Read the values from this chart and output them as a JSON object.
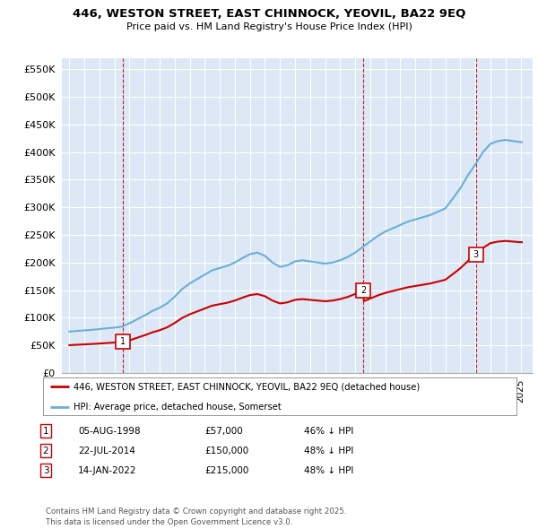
{
  "title": "446, WESTON STREET, EAST CHINNOCK, YEOVIL, BA22 9EQ",
  "subtitle": "Price paid vs. HM Land Registry's House Price Index (HPI)",
  "sales": [
    {
      "date_float": 1998.583,
      "price": 57000,
      "label": "1"
    },
    {
      "date_float": 2014.542,
      "price": 150000,
      "label": "2"
    },
    {
      "date_float": 2022.036,
      "price": 215000,
      "label": "3"
    }
  ],
  "sale_details": [
    {
      "num": "1",
      "date": "05-AUG-1998",
      "price": "£57,000",
      "change": "46% ↓ HPI"
    },
    {
      "num": "2",
      "date": "22-JUL-2014",
      "price": "£150,000",
      "change": "48% ↓ HPI"
    },
    {
      "num": "3",
      "date": "14-JAN-2022",
      "price": "£215,000",
      "change": "48% ↓ HPI"
    }
  ],
  "legend_line1": "446, WESTON STREET, EAST CHINNOCK, YEOVIL, BA22 9EQ (detached house)",
  "legend_line2": "HPI: Average price, detached house, Somerset",
  "footer": "Contains HM Land Registry data © Crown copyright and database right 2025.\nThis data is licensed under the Open Government Licence v3.0.",
  "red_color": "#cc0000",
  "blue_color": "#6baed6",
  "background_color": "#dce8f5",
  "ylim_max": 570000,
  "ylabel_ticks": [
    0,
    50000,
    100000,
    150000,
    200000,
    250000,
    300000,
    350000,
    400000,
    450000,
    500000,
    550000
  ],
  "ylabel_labels": [
    "£0",
    "£50K",
    "£100K",
    "£150K",
    "£200K",
    "£250K",
    "£300K",
    "£350K",
    "£400K",
    "£450K",
    "£500K",
    "£550K"
  ],
  "hpi_points": [
    [
      1995.0,
      75000
    ],
    [
      1995.5,
      76000
    ],
    [
      1996.0,
      77000
    ],
    [
      1996.5,
      78000
    ],
    [
      1997.0,
      79500
    ],
    [
      1997.5,
      81000
    ],
    [
      1998.0,
      82000
    ],
    [
      1998.5,
      84000
    ],
    [
      1999.0,
      90000
    ],
    [
      1999.5,
      97000
    ],
    [
      2000.0,
      104000
    ],
    [
      2000.5,
      112000
    ],
    [
      2001.0,
      118000
    ],
    [
      2001.5,
      126000
    ],
    [
      2002.0,
      138000
    ],
    [
      2002.5,
      152000
    ],
    [
      2003.0,
      162000
    ],
    [
      2003.5,
      170000
    ],
    [
      2004.0,
      178000
    ],
    [
      2004.5,
      186000
    ],
    [
      2005.0,
      190000
    ],
    [
      2005.5,
      194000
    ],
    [
      2006.0,
      200000
    ],
    [
      2006.5,
      208000
    ],
    [
      2007.0,
      215000
    ],
    [
      2007.5,
      218000
    ],
    [
      2008.0,
      212000
    ],
    [
      2008.5,
      200000
    ],
    [
      2009.0,
      192000
    ],
    [
      2009.5,
      195000
    ],
    [
      2010.0,
      202000
    ],
    [
      2010.5,
      204000
    ],
    [
      2011.0,
      202000
    ],
    [
      2011.5,
      200000
    ],
    [
      2012.0,
      198000
    ],
    [
      2012.5,
      200000
    ],
    [
      2013.0,
      204000
    ],
    [
      2013.5,
      210000
    ],
    [
      2014.0,
      218000
    ],
    [
      2014.5,
      228000
    ],
    [
      2015.0,
      238000
    ],
    [
      2015.5,
      248000
    ],
    [
      2016.0,
      256000
    ],
    [
      2016.5,
      262000
    ],
    [
      2017.0,
      268000
    ],
    [
      2017.5,
      274000
    ],
    [
      2018.0,
      278000
    ],
    [
      2018.5,
      282000
    ],
    [
      2019.0,
      286000
    ],
    [
      2019.5,
      292000
    ],
    [
      2020.0,
      298000
    ],
    [
      2020.5,
      316000
    ],
    [
      2021.0,
      335000
    ],
    [
      2021.5,
      358000
    ],
    [
      2022.0,
      378000
    ],
    [
      2022.5,
      400000
    ],
    [
      2023.0,
      415000
    ],
    [
      2023.5,
      420000
    ],
    [
      2024.0,
      422000
    ],
    [
      2024.5,
      420000
    ],
    [
      2025.0,
      418000
    ]
  ]
}
